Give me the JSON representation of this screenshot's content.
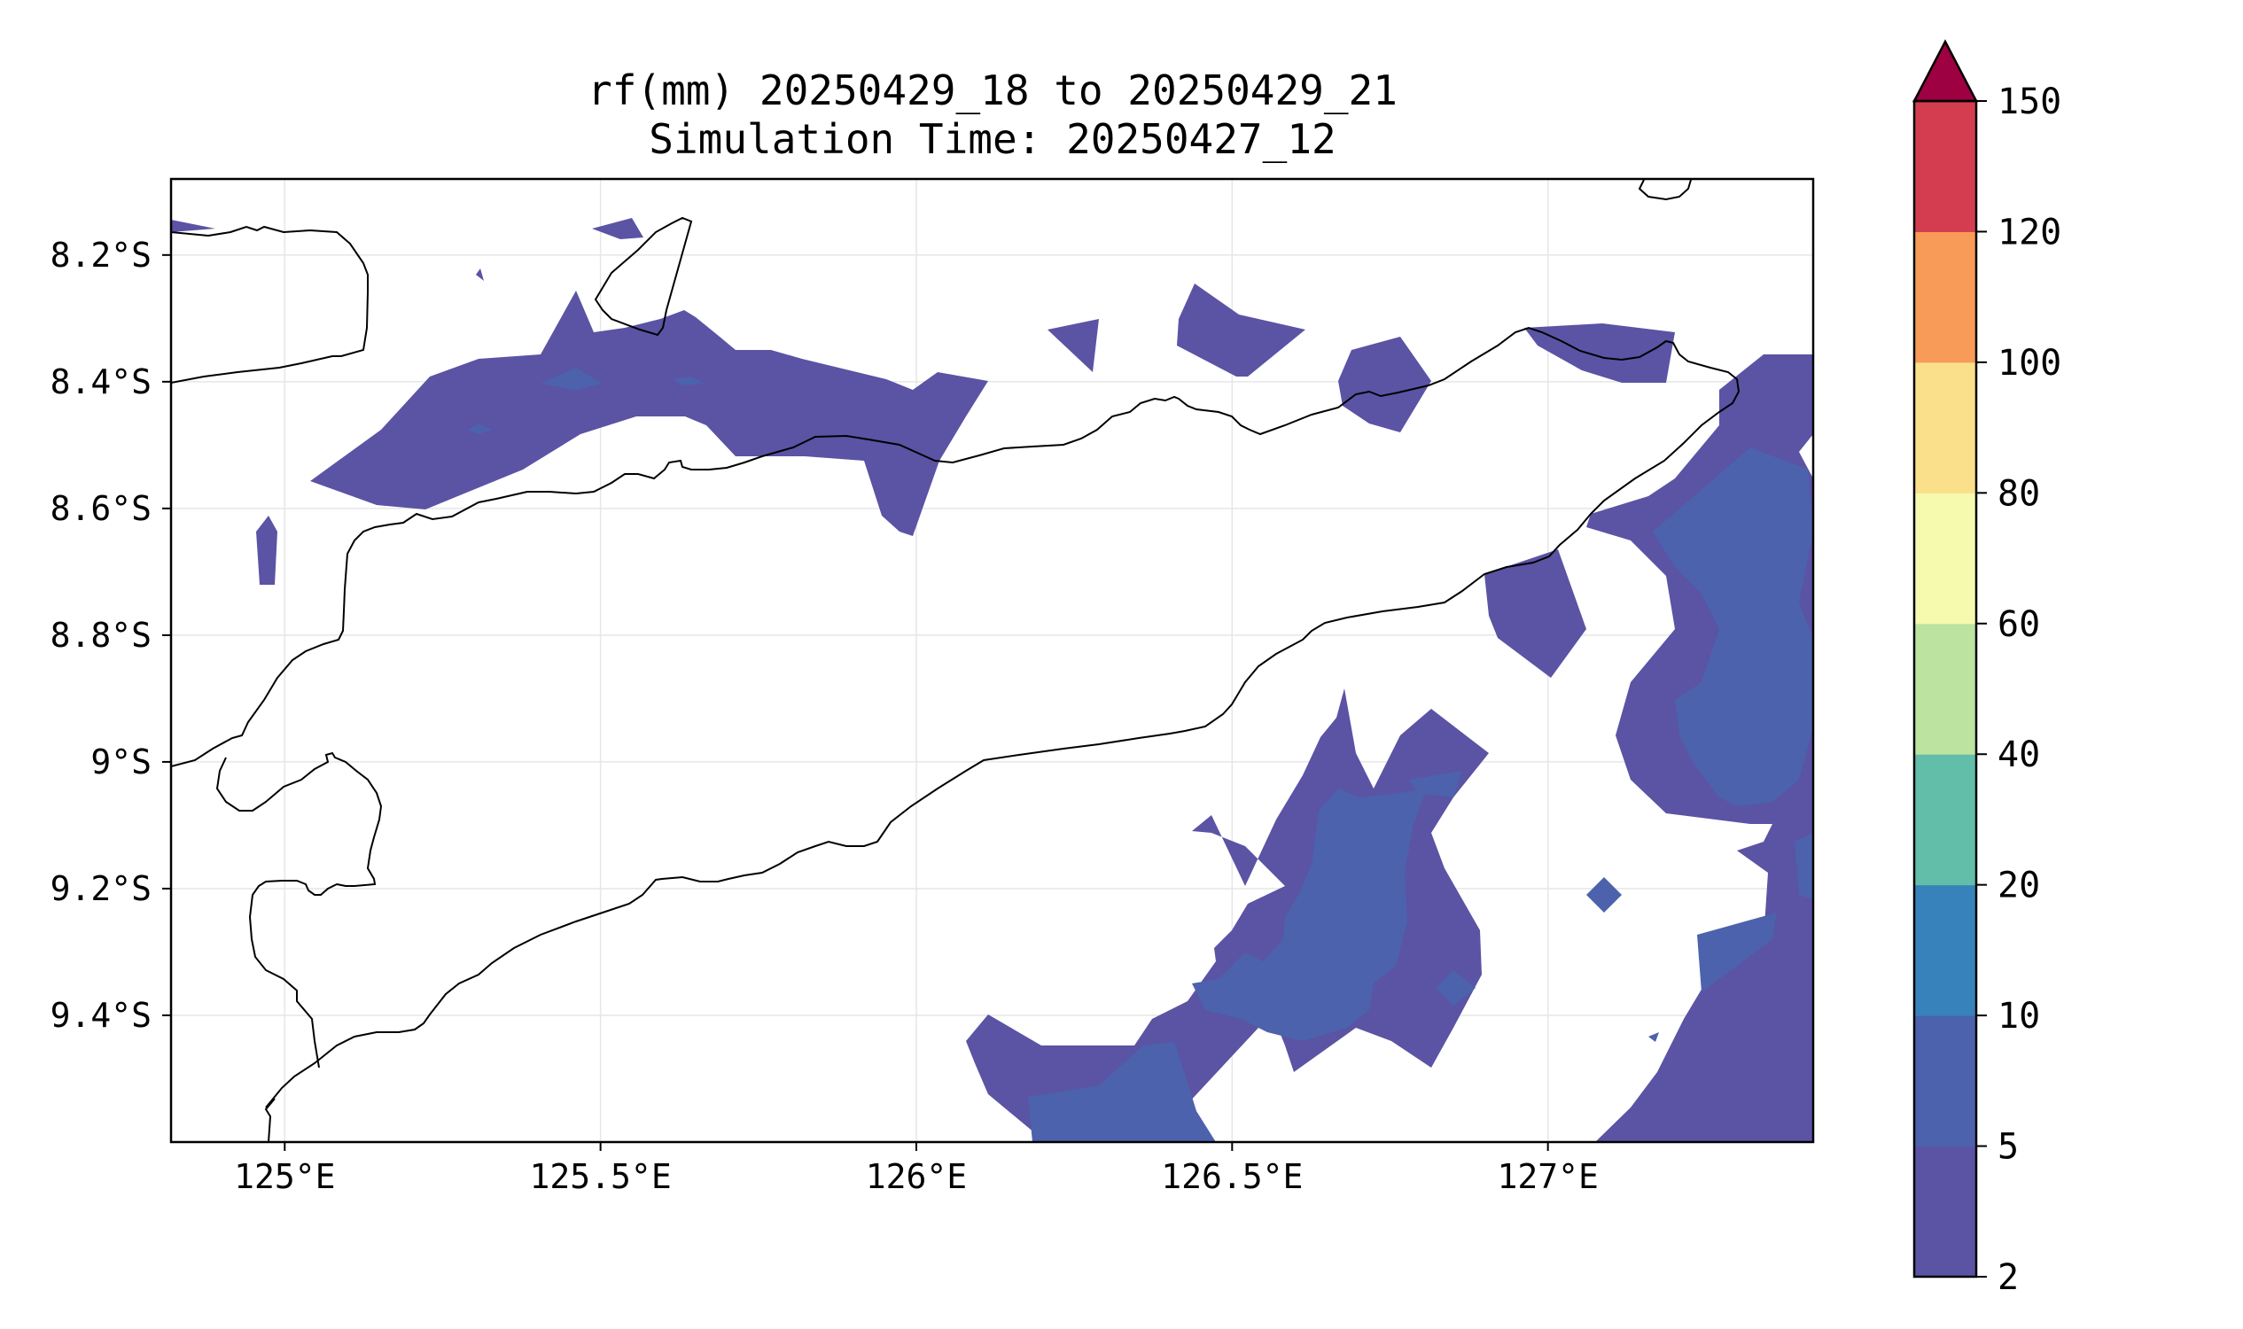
{
  "title": {
    "line1": "rf(mm) 20250429_18 to 20250429_21",
    "line2": "Simulation Time: 20250427_12"
  },
  "map": {
    "lon_range": [
      124.82,
      127.42
    ],
    "lat_range": [
      -9.6,
      -8.08
    ],
    "lon_ticks": [
      {
        "value": 125.0,
        "label": "125°E"
      },
      {
        "value": 125.5,
        "label": "125.5°E"
      },
      {
        "value": 126.0,
        "label": "126°E"
      },
      {
        "value": 126.5,
        "label": "126.5°E"
      },
      {
        "value": 127.0,
        "label": "127°E"
      }
    ],
    "lat_ticks": [
      {
        "value": -8.2,
        "label": "8.2°S"
      },
      {
        "value": -8.4,
        "label": "8.4°S"
      },
      {
        "value": -8.6,
        "label": "8.6°S"
      },
      {
        "value": -8.8,
        "label": "8.8°S"
      },
      {
        "value": -9.0,
        "label": "9°S"
      },
      {
        "value": -9.2,
        "label": "9.2°S"
      },
      {
        "value": -9.4,
        "label": "9.4°S"
      }
    ],
    "gridlines": true,
    "fill_colors": {
      "2-5": "#5b53a4",
      "5-10": "#4c62ad"
    }
  },
  "colorbar": {
    "extend": "max",
    "levels": [
      "2",
      "5",
      "10",
      "20",
      "40",
      "60",
      "80",
      "100",
      "120",
      "150"
    ],
    "colors": [
      "#5b53a4",
      "#4c62ad",
      "#3782bb",
      "#62bda9",
      "#bce3a0",
      "#f5faae",
      "#fae08b",
      "#f99b58",
      "#d43d4f"
    ],
    "extend_color": "#9e0142"
  }
}
